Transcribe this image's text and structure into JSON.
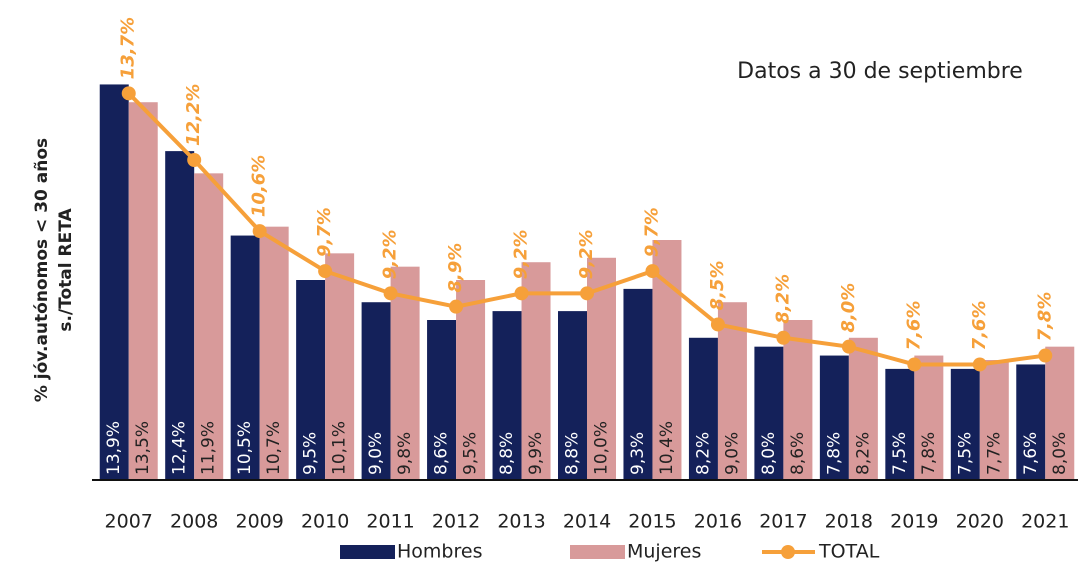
{
  "chart_data": {
    "type": "bar_line",
    "annotation": "Datos a 30 de septiembre",
    "ylabel": [
      "% jóv.autónomos < 30 años",
      "s./Total RETA"
    ],
    "categories": [
      "2007",
      "2008",
      "2009",
      "2010",
      "2011",
      "2012",
      "2013",
      "2014",
      "2015",
      "2016",
      "2017",
      "2018",
      "2019",
      "2020",
      "2021"
    ],
    "ylim": [
      5,
      15.8
    ],
    "series": [
      {
        "name": "Hombres",
        "color": "#14215a",
        "kind": "bar",
        "values": [
          13.9,
          12.4,
          10.5,
          9.5,
          9.0,
          8.6,
          8.8,
          8.8,
          9.3,
          8.2,
          8.0,
          7.8,
          7.5,
          7.5,
          7.6
        ],
        "value_labels": [
          "13,9%",
          "12,4%",
          "10,5%",
          "9,5%",
          "9,0%",
          "8,6%",
          "8,8%",
          "8,8%",
          "9,3%",
          "8,2%",
          "8,0%",
          "7,8%",
          "7,5%",
          "7,5%",
          "7,6%"
        ]
      },
      {
        "name": "Mujeres",
        "color": "#d89a9a",
        "kind": "bar",
        "values": [
          13.5,
          11.9,
          10.7,
          10.1,
          9.8,
          9.5,
          9.9,
          10.0,
          10.4,
          9.0,
          8.6,
          8.2,
          7.8,
          7.7,
          8.0
        ],
        "value_labels": [
          "13,5%",
          "11,9%",
          "10,7%",
          "10,1%",
          "9,8%",
          "9,5%",
          "9,9%",
          "10,0%",
          "10,4%",
          "9,0%",
          "8,6%",
          "8,2%",
          "7,8%",
          "7,7%",
          "8,0%"
        ]
      },
      {
        "name": "TOTAL",
        "color": "#f6a03a",
        "kind": "line",
        "values": [
          13.7,
          12.2,
          10.6,
          9.7,
          9.2,
          8.9,
          9.2,
          9.2,
          9.7,
          8.5,
          8.2,
          8.0,
          7.6,
          7.6,
          7.8
        ],
        "value_labels": [
          "13,7%",
          "12,2%",
          "10,6%",
          "9,7%",
          "9,2%",
          "8,9%",
          "9,2%",
          "9,2%",
          "9,7%",
          "8,5%",
          "8,2%",
          "8,0%",
          "7,6%",
          "7,6%",
          "7,8%"
        ]
      }
    ]
  }
}
